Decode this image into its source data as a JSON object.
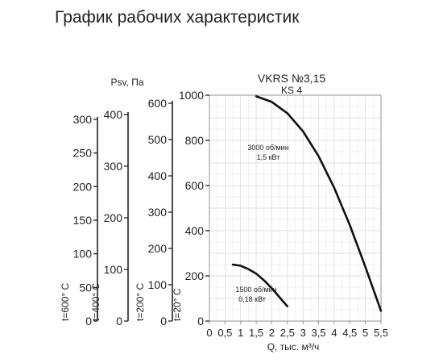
{
  "chart_data": {
    "type": "line",
    "title": "График рабочих характеристик",
    "model": "VKRS №3,15",
    "submodel": "KS 4",
    "xlabel": "Q, тыс. м³/ч",
    "x_ticks": [
      "0",
      "0,5",
      "1",
      "1,5",
      "2",
      "2,5",
      "3",
      "3,5",
      "4",
      "4,5",
      "5",
      "5,5"
    ],
    "xlim": [
      0,
      5.5
    ],
    "ylabel": "Psv, Па",
    "ylim": [
      0,
      1000
    ],
    "y_axes": [
      {
        "label": "t=600° C",
        "ticks": [
          "0",
          "50",
          "100",
          "150",
          "200",
          "250",
          "300"
        ]
      },
      {
        "label": "t=400° C",
        "ticks": [
          "0",
          "100",
          "200",
          "300",
          "400"
        ]
      },
      {
        "label": "t=200° C",
        "ticks": [
          "0",
          "100",
          "200",
          "300",
          "400",
          "500",
          "600"
        ]
      },
      {
        "label": "t=20° C",
        "ticks": [
          "0",
          "200",
          "400",
          "600",
          "800",
          "1000"
        ]
      }
    ],
    "grid": true,
    "series": [
      {
        "name_line1": "3000 об/мин",
        "name_line2": "1,5 кВт",
        "x": [
          1.5,
          2.0,
          2.5,
          3.0,
          3.5,
          4.0,
          4.5,
          5.0,
          5.5
        ],
        "y": [
          995,
          970,
          920,
          840,
          730,
          590,
          425,
          240,
          45
        ]
      },
      {
        "name_line1": "1500 об/мин",
        "name_line2": "0,18 кВт",
        "x": [
          0.75,
          1.0,
          1.25,
          1.5,
          1.75,
          2.0,
          2.25,
          2.5
        ],
        "y": [
          250,
          245,
          230,
          210,
          180,
          145,
          105,
          65
        ]
      }
    ]
  }
}
